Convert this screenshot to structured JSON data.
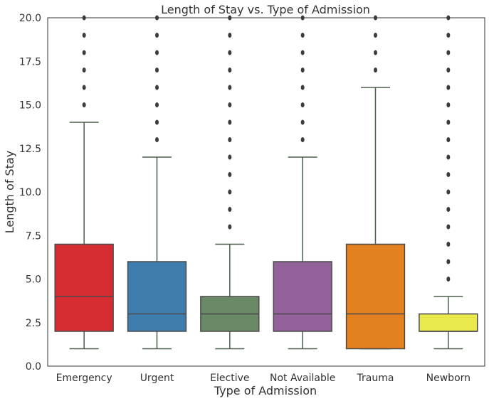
{
  "chart_data": {
    "type": "box",
    "title": "Length of Stay vs. Type of Admission",
    "xlabel": "Type of Admission",
    "ylabel": "Length of Stay",
    "ylim": [
      0,
      20
    ],
    "yticks": [
      "0.0",
      "2.5",
      "5.0",
      "7.5",
      "10.0",
      "12.5",
      "15.0",
      "17.5",
      "20.0"
    ],
    "grid": false,
    "categories": [
      "Emergency",
      "Urgent",
      "Elective",
      "Not Available",
      "Trauma",
      "Newborn"
    ],
    "boxes": [
      {
        "category": "Emergency",
        "whisker_low": 1,
        "q1": 2,
        "median": 4,
        "q3": 7,
        "whisker_high": 14,
        "outliers": [
          15,
          16,
          17,
          18,
          19,
          20
        ],
        "color": "#d62d32"
      },
      {
        "category": "Urgent",
        "whisker_low": 1,
        "q1": 2,
        "median": 3,
        "q3": 6,
        "whisker_high": 12,
        "outliers": [
          13,
          14,
          15,
          16,
          17,
          18,
          19,
          20
        ],
        "color": "#407daf"
      },
      {
        "category": "Elective",
        "whisker_low": 1,
        "q1": 2,
        "median": 3,
        "q3": 4,
        "whisker_high": 7,
        "outliers": [
          8,
          9,
          10,
          11,
          12,
          13,
          14,
          15,
          16,
          17,
          18,
          19,
          20
        ],
        "color": "#6a8966"
      },
      {
        "category": "Not Available",
        "whisker_low": 1,
        "q1": 2,
        "median": 3,
        "q3": 6,
        "whisker_high": 12,
        "outliers": [
          13,
          14,
          15,
          16,
          17,
          18,
          19,
          20
        ],
        "color": "#93629a"
      },
      {
        "category": "Trauma",
        "whisker_low": 1,
        "q1": 1,
        "median": 3,
        "q3": 7,
        "whisker_high": 16,
        "outliers": [
          17,
          18,
          19,
          20
        ],
        "color": "#e3801f"
      },
      {
        "category": "Newborn",
        "whisker_low": 1,
        "q1": 2,
        "median": 2,
        "q3": 3,
        "whisker_high": 4,
        "outliers": [
          5,
          6,
          7,
          8,
          9,
          10,
          11,
          12,
          13,
          14,
          15,
          16,
          17,
          18,
          19,
          20
        ],
        "color": "#e9e84d"
      }
    ],
    "line_color": "#4a5f4a",
    "outlier_color": "#3c3c3c"
  }
}
